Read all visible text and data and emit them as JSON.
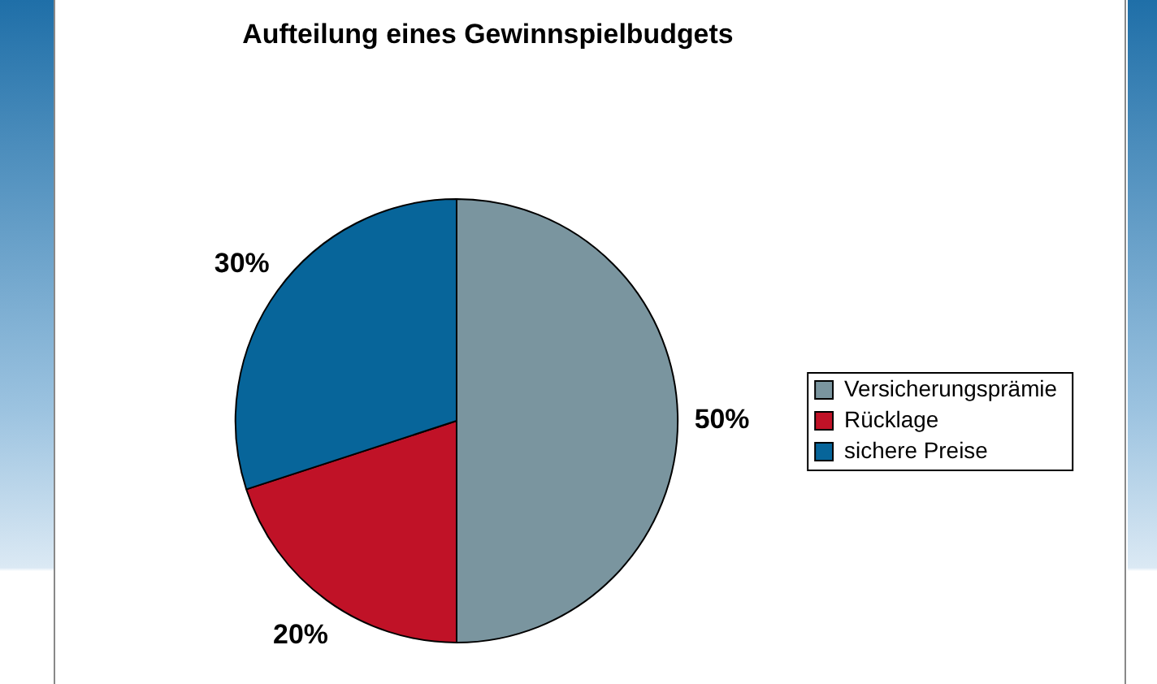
{
  "chart_data": {
    "type": "pie",
    "title": "Aufteilung eines Gewinnspielbudgets",
    "categories": [
      "Versicherungsprämie",
      "Rücklage",
      "sichere Preise"
    ],
    "values": [
      50,
      20,
      30
    ],
    "colors": [
      "#7a959f",
      "#c01227",
      "#07659a"
    ],
    "value_labels": [
      "50%",
      "20%",
      "30%"
    ],
    "legend": "right"
  }
}
